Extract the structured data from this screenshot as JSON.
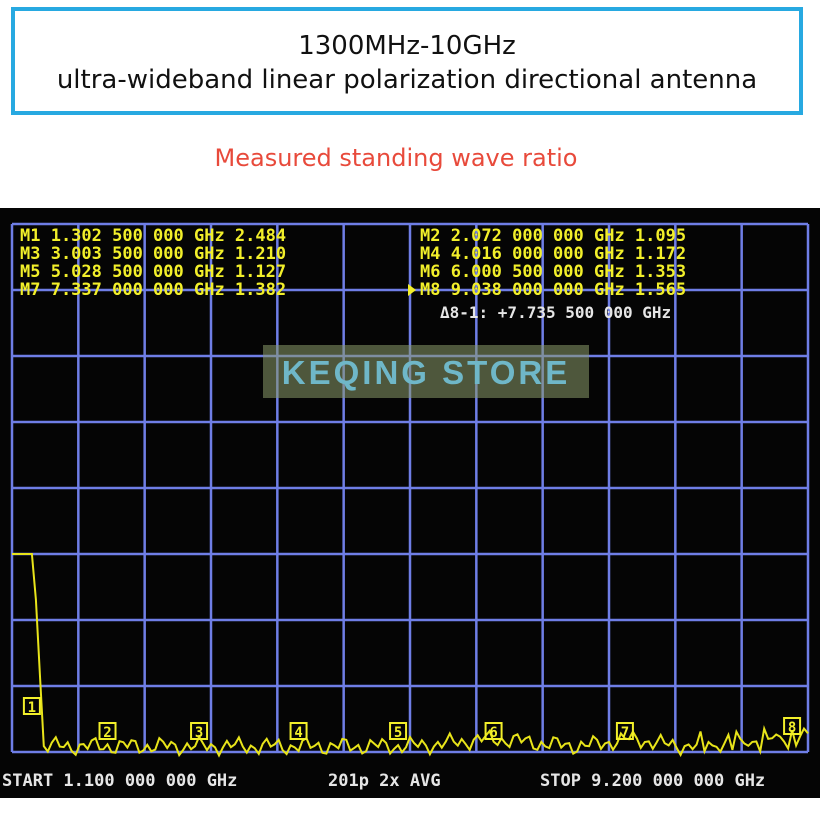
{
  "title_line1": "1300MHz-10GHz",
  "title_line2": "ultra-wideband linear polarization directional antenna",
  "subtitle": "Measured standing wave ratio",
  "watermark": "KEQING STORE",
  "marker_readouts_left": [
    "M1 1.302 500 000 GHz 2.484",
    "M3 3.003 500 000 GHz 1.210",
    "M5 5.028 500 000 GHz 1.127",
    "M7 7.337 000 000 GHz 1.382"
  ],
  "marker_readouts_right": [
    "M2 2.072 000 000 GHz 1.095",
    "M4 4.016 000 000 GHz 1.172",
    "M6 6.000 500 000 GHz 1.353",
    "M8 9.038 000 000 GHz 1.565"
  ],
  "delta_readout": "Δ8-1: +7.735 500 000 GHz",
  "start_label": "START 1.100 000 000 GHz",
  "points_avg_label": "201p  2x AVG",
  "stop_label": "STOP 9.200 000 000 GHz",
  "markers": [
    {
      "label": "1",
      "freq_ghz": 1.3025,
      "swr": 2.484
    },
    {
      "label": "2",
      "freq_ghz": 2.072,
      "swr": 1.095
    },
    {
      "label": "3",
      "freq_ghz": 3.0035,
      "swr": 1.21
    },
    {
      "label": "4",
      "freq_ghz": 4.016,
      "swr": 1.172
    },
    {
      "label": "5",
      "freq_ghz": 5.0285,
      "swr": 1.127
    },
    {
      "label": "6",
      "freq_ghz": 6.0005,
      "swr": 1.353
    },
    {
      "label": "7",
      "freq_ghz": 7.337,
      "swr": 1.382
    },
    {
      "label": "8",
      "freq_ghz": 9.038,
      "swr": 1.565
    }
  ],
  "colors": {
    "title_border": "#27a9e1",
    "subtitle": "#e84a3b",
    "grid": "#6f7ee6",
    "trace": "#e8e41a",
    "text_white": "#e6e6e6",
    "text_yellow": "#f2ef2a"
  }
}
